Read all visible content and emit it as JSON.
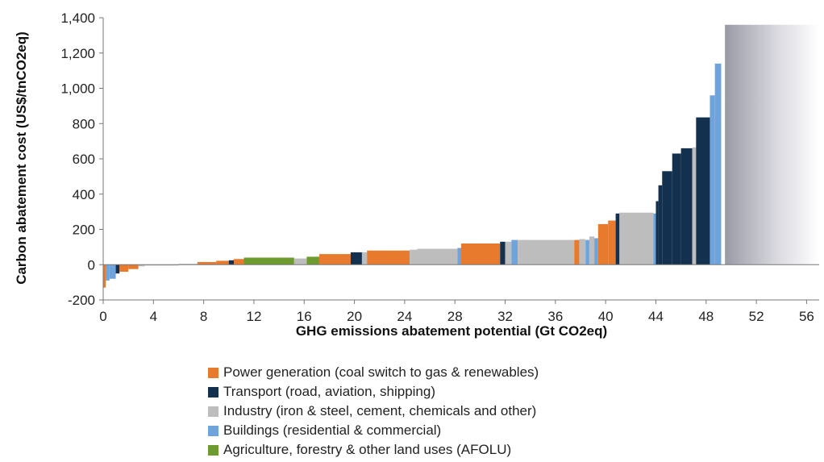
{
  "chart_data": {
    "type": "bar",
    "subtype": "marginal abatement cost curve (variable-width bars)",
    "xlabel": "GHG emissions abatement potential  (Gt CO2eq)",
    "ylabel": "Carbon abatement cost (US$/tnCO2eq)",
    "xlim": [
      0,
      57
    ],
    "ylim": [
      -200,
      1400
    ],
    "x_ticks": [
      "0",
      "4",
      "8",
      "12",
      "16",
      "20",
      "24",
      "28",
      "32",
      "36",
      "40",
      "44",
      "48",
      "52",
      "56"
    ],
    "x_tick_values": [
      0,
      4,
      8,
      12,
      16,
      20,
      24,
      28,
      32,
      36,
      40,
      44,
      48,
      52,
      56
    ],
    "y_ticks": [
      "-200",
      "0",
      "200",
      "400",
      "600",
      "800",
      "1,000",
      "1,200",
      "1,400"
    ],
    "y_tick_values": [
      -200,
      0,
      200,
      400,
      600,
      800,
      1000,
      1200,
      1400
    ],
    "grid": false,
    "legend_position": "bottom",
    "colors": {
      "power": "#E87A2E",
      "transport": "#13304F",
      "industry": "#BDBDBD",
      "buildings": "#6FA3DB",
      "afolu": "#6E9B2F"
    },
    "series": [
      {
        "key": "power",
        "name": "Power generation (coal switch to gas & renewables)"
      },
      {
        "key": "transport",
        "name": "Transport (road, aviation, shipping)"
      },
      {
        "key": "industry",
        "name": "Industry (iron & steel, cement, chemicals and other)"
      },
      {
        "key": "buildings",
        "name": "Buildings (residential & commercial)"
      },
      {
        "key": "afolu",
        "name": "Agriculture, forestry & other land uses (AFOLU)"
      }
    ],
    "bars": [
      {
        "x0": 0.0,
        "x1": 0.2,
        "value": -130,
        "sector": "power"
      },
      {
        "x0": 0.2,
        "x1": 0.5,
        "value": -90,
        "sector": "buildings"
      },
      {
        "x0": 0.5,
        "x1": 1.0,
        "value": -80,
        "sector": "buildings"
      },
      {
        "x0": 1.0,
        "x1": 1.3,
        "value": -50,
        "sector": "transport"
      },
      {
        "x0": 1.3,
        "x1": 2.0,
        "value": -40,
        "sector": "power"
      },
      {
        "x0": 2.0,
        "x1": 2.8,
        "value": -25,
        "sector": "power"
      },
      {
        "x0": 2.8,
        "x1": 3.3,
        "value": -10,
        "sector": "industry"
      },
      {
        "x0": 3.3,
        "x1": 6.0,
        "value": -5,
        "sector": "industry"
      },
      {
        "x0": 6.0,
        "x1": 7.5,
        "value": 5,
        "sector": "industry"
      },
      {
        "x0": 7.5,
        "x1": 9.0,
        "value": 15,
        "sector": "power"
      },
      {
        "x0": 9.0,
        "x1": 10.0,
        "value": 22,
        "sector": "power"
      },
      {
        "x0": 10.0,
        "x1": 10.4,
        "value": 25,
        "sector": "transport"
      },
      {
        "x0": 10.4,
        "x1": 11.2,
        "value": 32,
        "sector": "power"
      },
      {
        "x0": 11.2,
        "x1": 15.2,
        "value": 40,
        "sector": "afolu"
      },
      {
        "x0": 15.2,
        "x1": 16.2,
        "value": 35,
        "sector": "industry"
      },
      {
        "x0": 16.2,
        "x1": 17.2,
        "value": 45,
        "sector": "afolu"
      },
      {
        "x0": 17.2,
        "x1": 19.7,
        "value": 60,
        "sector": "power"
      },
      {
        "x0": 19.7,
        "x1": 20.6,
        "value": 70,
        "sector": "transport"
      },
      {
        "x0": 20.6,
        "x1": 21.0,
        "value": 70,
        "sector": "industry"
      },
      {
        "x0": 21.0,
        "x1": 24.4,
        "value": 80,
        "sector": "power"
      },
      {
        "x0": 24.4,
        "x1": 25.0,
        "value": 85,
        "sector": "industry"
      },
      {
        "x0": 25.0,
        "x1": 28.2,
        "value": 90,
        "sector": "industry"
      },
      {
        "x0": 28.2,
        "x1": 28.5,
        "value": 95,
        "sector": "buildings"
      },
      {
        "x0": 28.5,
        "x1": 31.6,
        "value": 120,
        "sector": "power"
      },
      {
        "x0": 31.6,
        "x1": 32.0,
        "value": 130,
        "sector": "transport"
      },
      {
        "x0": 32.0,
        "x1": 32.5,
        "value": 130,
        "sector": "industry"
      },
      {
        "x0": 32.5,
        "x1": 33.0,
        "value": 140,
        "sector": "buildings"
      },
      {
        "x0": 33.0,
        "x1": 37.5,
        "value": 140,
        "sector": "industry"
      },
      {
        "x0": 37.5,
        "x1": 37.9,
        "value": 140,
        "sector": "power"
      },
      {
        "x0": 37.9,
        "x1": 38.4,
        "value": 145,
        "sector": "industry"
      },
      {
        "x0": 38.4,
        "x1": 38.7,
        "value": 140,
        "sector": "buildings"
      },
      {
        "x0": 38.7,
        "x1": 39.1,
        "value": 160,
        "sector": "industry"
      },
      {
        "x0": 39.1,
        "x1": 39.4,
        "value": 150,
        "sector": "buildings"
      },
      {
        "x0": 39.4,
        "x1": 40.2,
        "value": 230,
        "sector": "power"
      },
      {
        "x0": 40.2,
        "x1": 40.8,
        "value": 250,
        "sector": "power"
      },
      {
        "x0": 40.8,
        "x1": 41.1,
        "value": 290,
        "sector": "transport"
      },
      {
        "x0": 41.1,
        "x1": 43.8,
        "value": 295,
        "sector": "industry"
      },
      {
        "x0": 43.8,
        "x1": 44.0,
        "value": 290,
        "sector": "buildings"
      },
      {
        "x0": 44.0,
        "x1": 44.2,
        "value": 360,
        "sector": "transport"
      },
      {
        "x0": 44.2,
        "x1": 44.5,
        "value": 450,
        "sector": "transport"
      },
      {
        "x0": 44.5,
        "x1": 45.3,
        "value": 530,
        "sector": "transport"
      },
      {
        "x0": 45.3,
        "x1": 46.0,
        "value": 630,
        "sector": "transport"
      },
      {
        "x0": 46.0,
        "x1": 46.9,
        "value": 660,
        "sector": "transport"
      },
      {
        "x0": 46.9,
        "x1": 47.2,
        "value": 665,
        "sector": "industry"
      },
      {
        "x0": 47.2,
        "x1": 48.3,
        "value": 835,
        "sector": "transport"
      },
      {
        "x0": 48.3,
        "x1": 48.7,
        "value": 960,
        "sector": "buildings"
      },
      {
        "x0": 48.7,
        "x1": 49.2,
        "value": 1140,
        "sector": "buildings"
      }
    ],
    "shaded_region": {
      "x0": 49.5,
      "x1": 57,
      "value": 1360
    }
  }
}
